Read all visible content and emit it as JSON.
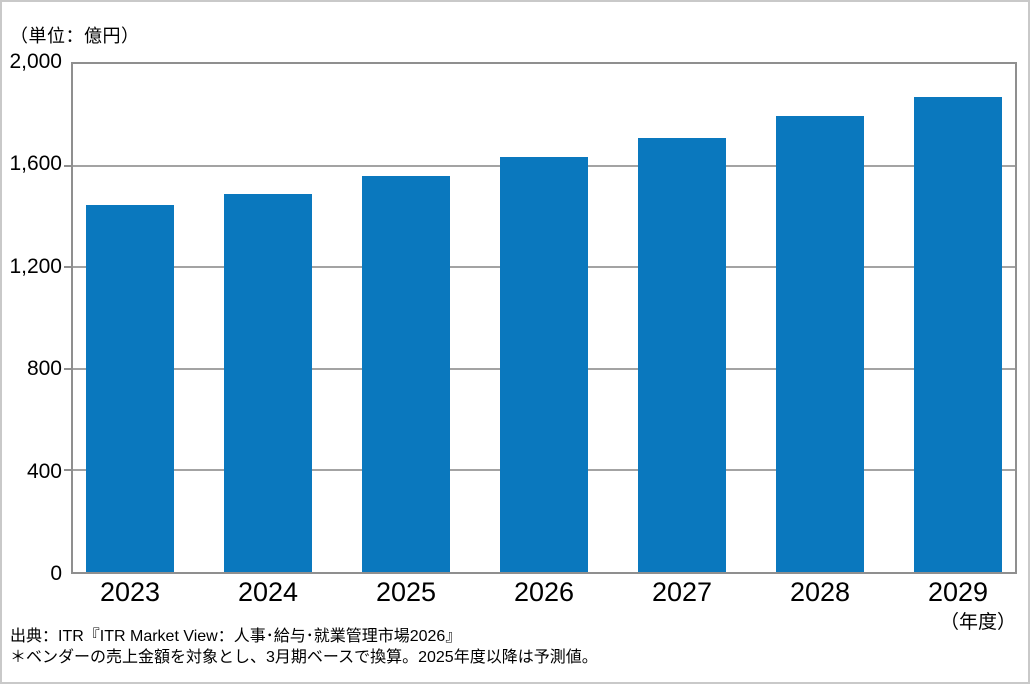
{
  "chart_data": {
    "type": "bar",
    "title": "",
    "ylabel": "（単位：億円）",
    "xlabel": "（年度）",
    "categories": [
      "2023",
      "2024",
      "2025",
      "2026",
      "2027",
      "2028",
      "2029"
    ],
    "values": [
      1445,
      1490,
      1560,
      1635,
      1710,
      1795,
      1870
    ],
    "ylim": [
      0,
      2000
    ],
    "yticks": [
      0,
      400,
      800,
      1200,
      1600,
      2000
    ],
    "ytick_labels": [
      "0",
      "400",
      "800",
      "1,200",
      "1,600",
      "2,000"
    ],
    "grid": true,
    "legend_position": "none"
  },
  "source": {
    "line1": "出典：ITR『ITR Market View：人事･給与･就業管理市場2026』",
    "line2": "＊ベンダーの売上金額を対象とし、3月期ベースで換算。2025年度以降は予測値。"
  },
  "colors": {
    "bar": "#0A78BE",
    "gridline": "#A3A3A3",
    "plot_border": "#8F8F8F",
    "text": "#000000"
  }
}
